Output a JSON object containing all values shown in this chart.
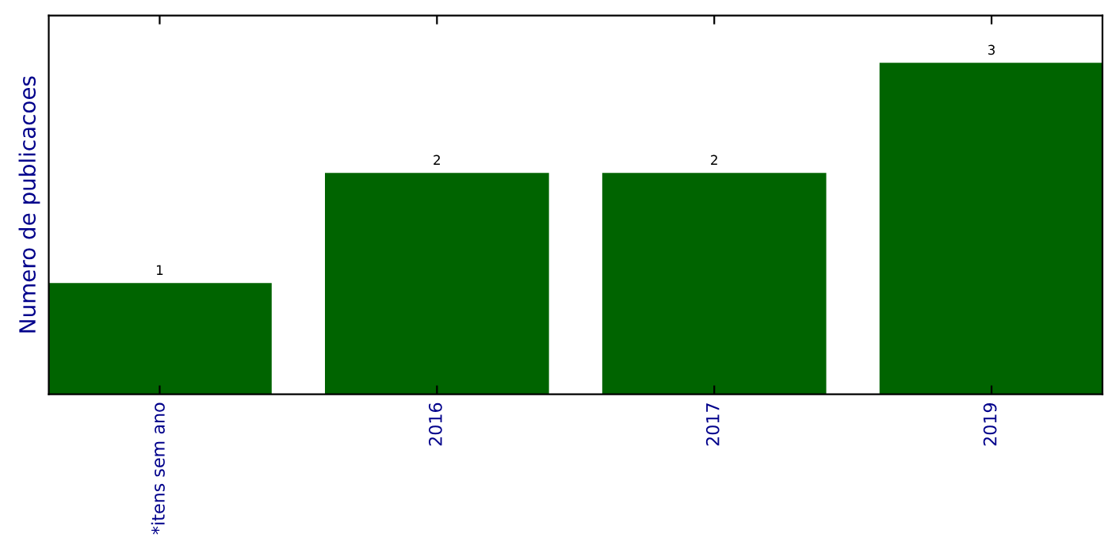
{
  "chart_data": {
    "type": "bar",
    "ylabel": "Numero de publicacoes",
    "categories": [
      "*itens sem ano",
      "2016",
      "2017",
      "2019"
    ],
    "values": [
      1,
      2,
      2,
      3
    ],
    "color": "#006400",
    "ylim": [
      0,
      3.44
    ],
    "data_labels": true,
    "tick_labels": "x"
  }
}
